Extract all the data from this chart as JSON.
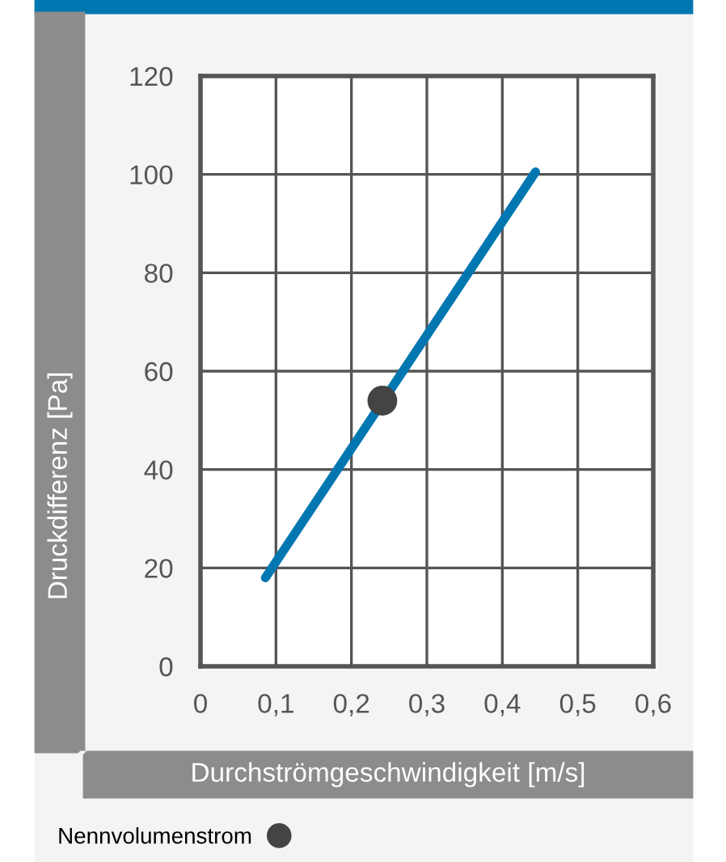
{
  "chart_data": {
    "type": "line",
    "xlabel": "Durchströmgeschwindigkeit [m/s]",
    "ylabel": "Druckdifferenz [Pa]",
    "series": [
      {
        "color": "#0077b0",
        "x": [
          0.086,
          0.444
        ],
        "values": [
          18,
          100.5
        ]
      },
      {
        "type": "scatter",
        "name": "Nennvolumenstrom",
        "color": "#444444",
        "x": [
          0.241
        ],
        "values": [
          54
        ]
      }
    ],
    "xlim": [
      0,
      0.6
    ],
    "ylim": [
      0,
      120
    ],
    "xticks": [
      0,
      {
        "value": 0.1,
        "label": "0,1"
      },
      {
        "value": 0.2,
        "label": "0,2"
      },
      {
        "value": 0.3,
        "label": "0,3"
      },
      {
        "value": 0.4,
        "label": "0,4"
      },
      {
        "value": 0.5,
        "label": "0,5"
      },
      {
        "value": 0.6,
        "label": "0,6"
      }
    ],
    "yticks": [
      0,
      20,
      40,
      60,
      80,
      100,
      120
    ],
    "grid": true,
    "legend": "bottom left"
  }
}
